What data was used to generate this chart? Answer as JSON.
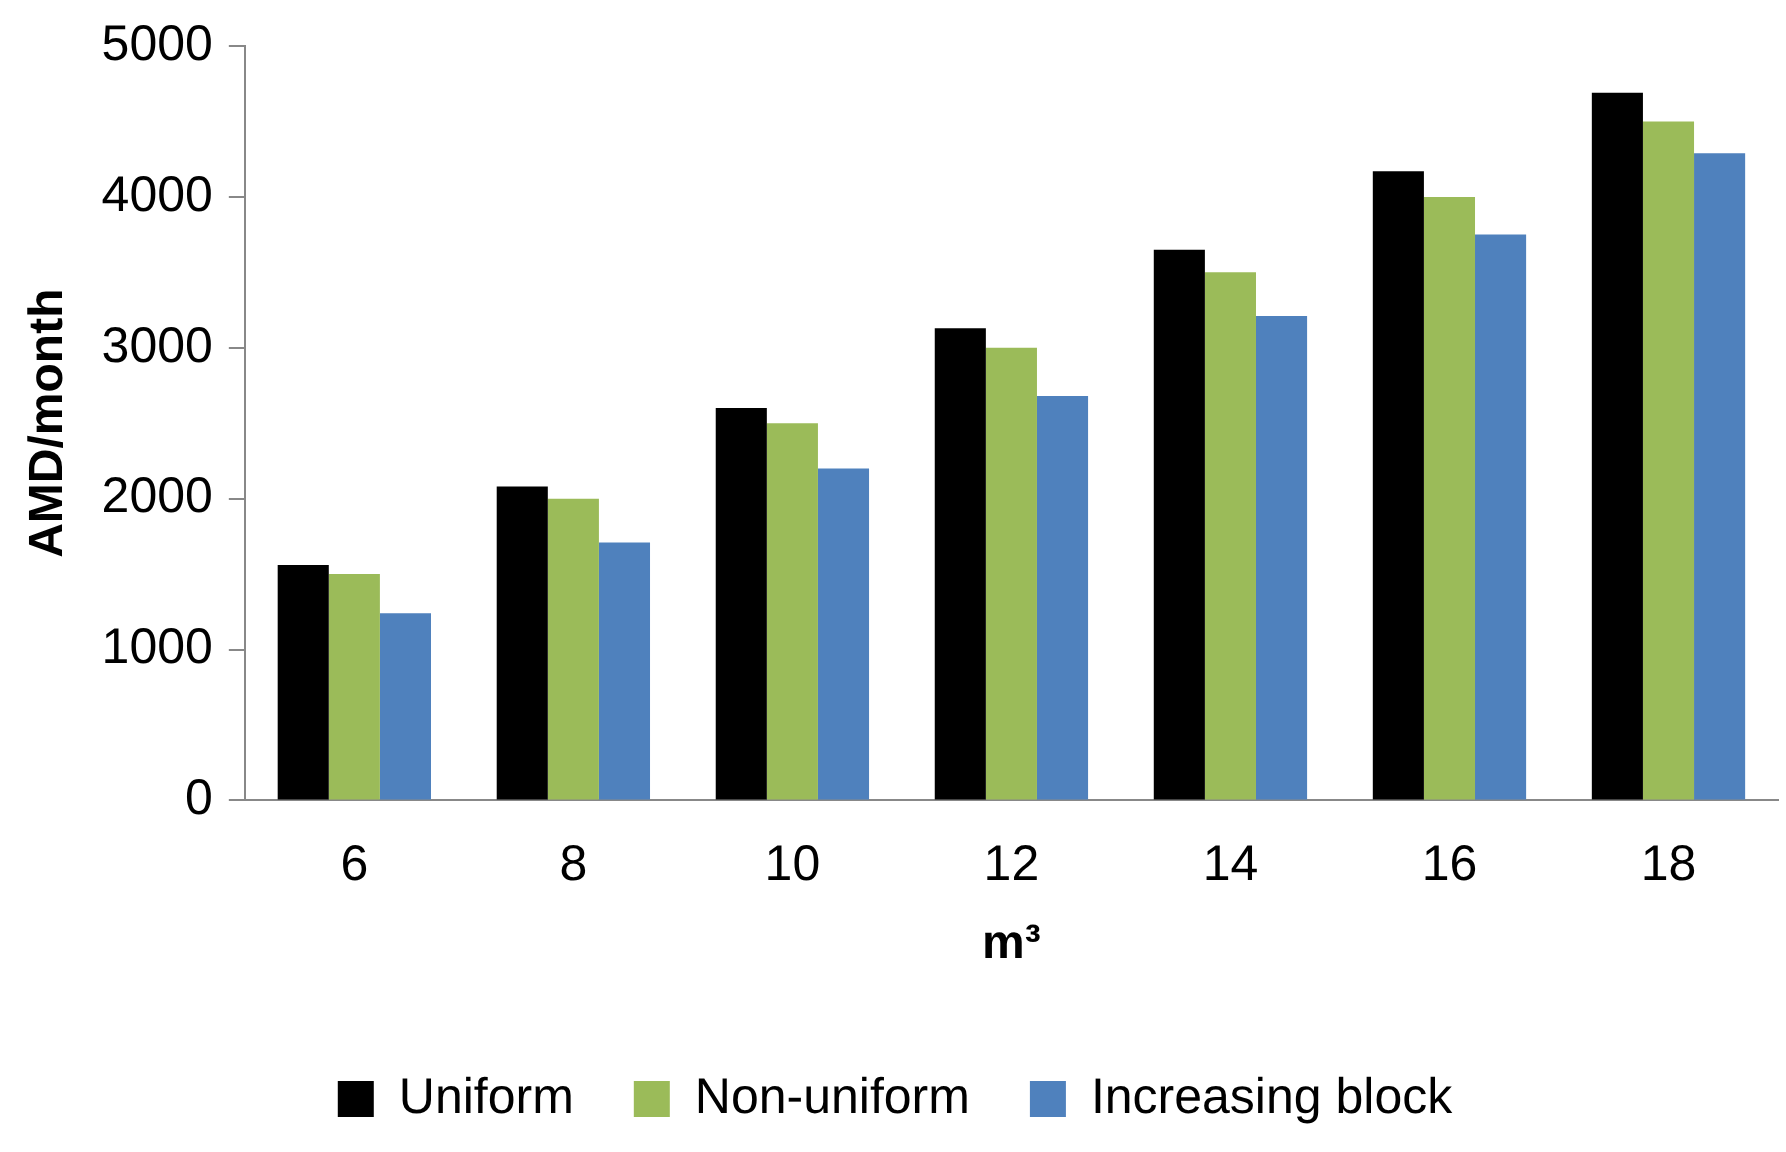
{
  "chart_data": {
    "type": "bar",
    "xlabel": "m³",
    "ylabel": "AMD/month",
    "categories": [
      "6",
      "8",
      "10",
      "12",
      "14",
      "16",
      "18"
    ],
    "series": [
      {
        "name": "Uniform",
        "color": "#000000",
        "values": [
          1560,
          2080,
          2600,
          3130,
          3650,
          4170,
          4690
        ]
      },
      {
        "name": "Non-uniform",
        "color": "#9bbb59",
        "values": [
          1500,
          2000,
          2500,
          3000,
          3500,
          4000,
          4500
        ]
      },
      {
        "name": "Increasing block",
        "color": "#4f81bd",
        "values": [
          1240,
          1710,
          2200,
          2680,
          3210,
          3750,
          4290
        ]
      }
    ],
    "ylim": [
      0,
      5000
    ],
    "yticks": [
      0,
      1000,
      2000,
      3000,
      4000,
      5000
    ],
    "grid": false,
    "legend": "bottom"
  }
}
